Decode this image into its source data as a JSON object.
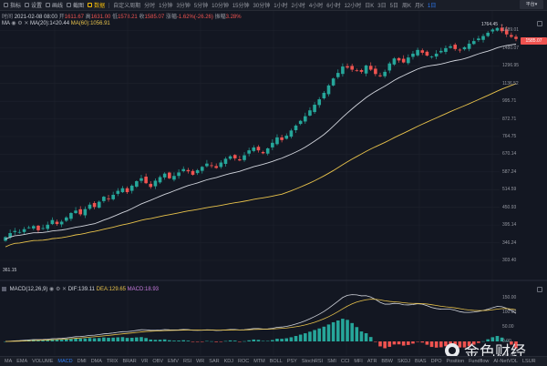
{
  "toolbar": {
    "items": [
      {
        "label": "指标",
        "active": false
      },
      {
        "label": "设置",
        "active": false
      },
      {
        "label": "画线",
        "active": false
      },
      {
        "label": "截图",
        "active": false
      },
      {
        "label": "数据",
        "active": true
      }
    ],
    "period_label": "自定义周期",
    "timeframes": [
      {
        "label": "分时",
        "active": false
      },
      {
        "label": "1分钟",
        "active": false
      },
      {
        "label": "3分钟",
        "active": false
      },
      {
        "label": "5分钟",
        "active": false
      },
      {
        "label": "10分钟",
        "active": false
      },
      {
        "label": "15分钟",
        "active": false
      },
      {
        "label": "30分钟",
        "active": false
      },
      {
        "label": "1小时",
        "active": false
      },
      {
        "label": "2小时",
        "active": false
      },
      {
        "label": "4小时",
        "active": false
      },
      {
        "label": "6小时",
        "active": false
      },
      {
        "label": "12小时",
        "active": false
      },
      {
        "label": "日K",
        "active": false
      },
      {
        "label": "3日",
        "active": false
      },
      {
        "label": "5日",
        "active": false
      },
      {
        "label": "周K",
        "active": false
      },
      {
        "label": "月K",
        "active": false
      },
      {
        "label": "1日",
        "active": true
      }
    ],
    "selector": "平台▾"
  },
  "ohlc": {
    "time_label": "时间",
    "time": "2021-02-08 08:00",
    "open_label": "开",
    "open": "1611.67",
    "high_label": "高",
    "high": "1631.00",
    "low_label": "低",
    "low": "1578.21",
    "close_label": "收",
    "close": "1585.07",
    "change_label": "涨幅",
    "change": "-1.62%(-26.26)",
    "amp_label": "振幅",
    "amp": "3.28%"
  },
  "ma": {
    "name": "MA",
    "ma20": "MA(20):1420.44",
    "ma60": "MA(60):1056.91"
  },
  "price_axis": [
    {
      "label": "1689.01",
      "price": 1689.01
    },
    {
      "label": "1480.07",
      "price": 1480.07
    },
    {
      "label": "1296.95",
      "price": 1296.95
    },
    {
      "label": "1136.52",
      "price": 1136.52
    },
    {
      "label": "995.71",
      "price": 995.71
    },
    {
      "label": "872.71",
      "price": 872.71
    },
    {
      "label": "764.75",
      "price": 764.75
    },
    {
      "label": "670.14",
      "price": 670.14
    },
    {
      "label": "587.24",
      "price": 587.24
    },
    {
      "label": "514.59",
      "price": 514.59
    },
    {
      "label": "450.93",
      "price": 450.93
    },
    {
      "label": "395.14",
      "price": 395.14
    },
    {
      "label": "346.24",
      "price": 346.24
    },
    {
      "label": "303.40",
      "price": 303.4
    }
  ],
  "current_price": "1585.07",
  "high_marker": "1764.45 →",
  "low_marker": "361.15",
  "macd": {
    "name": "MACD(12,26,9)",
    "dif": "DIF:139.11",
    "dea": "DEA:129.65",
    "macd": "MACD:18.93",
    "axis": [
      {
        "label": "150.00",
        "v": 150
      },
      {
        "label": "100.00",
        "v": 100
      },
      {
        "label": "50.00",
        "v": 50
      },
      {
        "label": "0.00",
        "v": 0
      },
      {
        "label": "-50.00",
        "v": -50
      },
      {
        "label": "-100.00",
        "v": -100
      }
    ]
  },
  "indicators": [
    {
      "label": "MA",
      "active": false
    },
    {
      "label": "EMA",
      "active": false
    },
    {
      "label": "VOLUME",
      "active": false
    },
    {
      "label": "MACD",
      "active": true
    },
    {
      "label": "DMI",
      "active": false
    },
    {
      "label": "DMA",
      "active": false
    },
    {
      "label": "TRIX",
      "active": false
    },
    {
      "label": "BRAR",
      "active": false
    },
    {
      "label": "VR",
      "active": false
    },
    {
      "label": "OBV",
      "active": false
    },
    {
      "label": "EMV",
      "active": false
    },
    {
      "label": "RSI",
      "active": false
    },
    {
      "label": "WR",
      "active": false
    },
    {
      "label": "SAR",
      "active": false
    },
    {
      "label": "KDJ",
      "active": false
    },
    {
      "label": "ROC",
      "active": false
    },
    {
      "label": "MTM",
      "active": false
    },
    {
      "label": "BOLL",
      "active": false
    },
    {
      "label": "PSY",
      "active": false
    },
    {
      "label": "StochRSI",
      "active": false
    },
    {
      "label": "SMI",
      "active": false
    },
    {
      "label": "CCI",
      "active": false
    },
    {
      "label": "MFI",
      "active": false
    },
    {
      "label": "ATR",
      "active": false
    },
    {
      "label": "BBW",
      "active": false
    },
    {
      "label": "SKDJ",
      "active": false
    },
    {
      "label": "BIAS",
      "active": false
    },
    {
      "label": "DPO",
      "active": false
    },
    {
      "label": "Position",
      "active": false
    },
    {
      "label": "Fundflow",
      "active": false
    },
    {
      "label": "AI-NetVOL",
      "active": false
    },
    {
      "label": "LSUR",
      "active": false
    }
  ],
  "watermark": "金色财经",
  "colors": {
    "up": "#26a69a",
    "down": "#ef5350",
    "ma20": "#d1d4dc",
    "ma60": "#e9c34b",
    "bg": "#131722"
  },
  "chart_data": {
    "type": "candlestick",
    "ylabel_scale": "log",
    "closes": [
      361,
      372,
      378,
      375,
      383,
      388,
      392,
      380,
      386,
      396,
      410,
      398,
      405,
      418,
      432,
      440,
      428,
      445,
      460,
      452,
      470,
      488,
      480,
      495,
      510,
      520,
      505,
      530,
      548,
      560,
      540,
      525,
      550,
      565,
      580,
      560,
      570,
      585,
      600,
      590,
      575,
      595,
      610,
      625,
      615,
      605,
      630,
      648,
      660,
      650,
      640,
      665,
      690,
      705,
      690,
      675,
      700,
      730,
      760,
      745,
      770,
      800,
      830,
      860,
      890,
      930,
      970,
      1010,
      1060,
      1120,
      1180,
      1230,
      1290,
      1280,
      1260,
      1250,
      1240,
      1300,
      1260,
      1220,
      1200,
      1240,
      1320,
      1370,
      1350,
      1330,
      1380,
      1420,
      1460,
      1430,
      1400,
      1390,
      1420,
      1450,
      1480,
      1500,
      1470,
      1460,
      1490,
      1530,
      1560,
      1590,
      1620,
      1660,
      1700,
      1720,
      1680,
      1640,
      1611,
      1585
    ],
    "ma20_last": 1420.44,
    "ma60_last": 1056.91,
    "last_candle": {
      "open": 1611.67,
      "high": 1631.0,
      "low": 1578.21,
      "close": 1585.07
    },
    "macd_dif_last": 139.11,
    "macd_dea_last": 129.65,
    "macd_hist_last": 18.93
  }
}
